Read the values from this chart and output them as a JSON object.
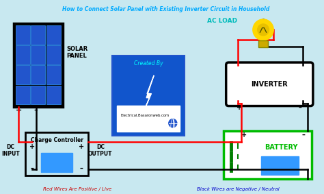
{
  "title": "How to Connect Solar Panel with Existing Inverter Circuit in Household",
  "title_color": "#00AAFF",
  "bg_color": "#C8E8F0",
  "footer_left": "Red Wires Are Positive / Live",
  "footer_right": "Black Wires are Negative / Neutral",
  "solar_panel_label": "SOLAR\nPANEL",
  "charge_controller_label": "Charge Controller",
  "dc_input_label": "DC\nINPUT",
  "dc_output_label": "DC\nOUTPUT",
  "inverter_label": "INVERTER",
  "battery_label": "BATTERY",
  "ac_load_label": "AC LOAD",
  "created_by": "Created By",
  "website": "Electrical.Basaronweb.com",
  "green_color": "#00BB00",
  "blue_box_color": "#1155CC",
  "solar_cell_color": "#2255CC",
  "solar_cell_edge": "#3399FF",
  "ac_load_color": "#00BBBB",
  "cyan_text": "#00FFFF",
  "red_wire": "#FF0000",
  "black_wire": "#000000",
  "bulb_color": "#FFD700",
  "bulb_base_color": "#CCAA00"
}
